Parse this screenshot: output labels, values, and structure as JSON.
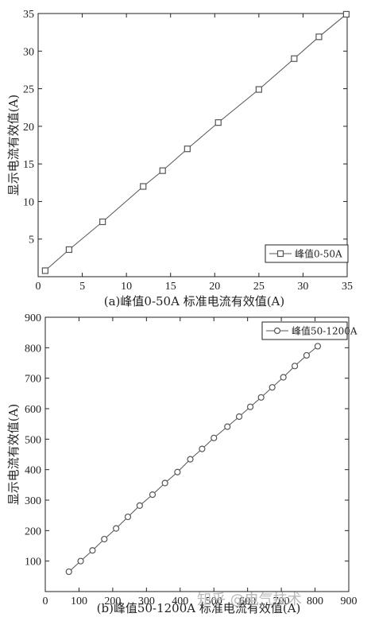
{
  "chart_data": [
    {
      "type": "line",
      "title": "",
      "xlabel": "(a)峰值0-50A  标准电流有效值(A)",
      "ylabel": "显示电流有效值(A)",
      "xlim": [
        0,
        35
      ],
      "ylim": [
        0,
        35
      ],
      "xticks": [
        "0",
        "5",
        "10",
        "15",
        "20",
        "25",
        "30",
        "35"
      ],
      "yticks": [
        "5",
        "10",
        "15",
        "20",
        "25",
        "30",
        "35"
      ],
      "legend_position": "bottom-right",
      "grid": false,
      "series": [
        {
          "name": "峰值0-50A",
          "marker": "square",
          "color": "#555555",
          "x": [
            0.8,
            3.5,
            7.3,
            11.9,
            14.1,
            16.9,
            20.4,
            25.0,
            29.0,
            31.8,
            34.9
          ],
          "y": [
            0.8,
            3.6,
            7.3,
            12.0,
            14.1,
            17.0,
            20.5,
            24.9,
            29.0,
            31.9,
            34.9
          ]
        }
      ]
    },
    {
      "type": "line",
      "title": "",
      "xlabel": "(b)峰值50-1200A  标准电流有效值(A)",
      "ylabel": "显示电流有效值(A)",
      "xlim": [
        0,
        900
      ],
      "ylim": [
        0,
        900
      ],
      "xticks": [
        "0",
        "100",
        "200",
        "300",
        "400",
        "500",
        "600",
        "700",
        "800",
        "900"
      ],
      "yticks": [
        "100",
        "200",
        "300",
        "400",
        "500",
        "600",
        "700",
        "800",
        "900"
      ],
      "legend_position": "top-right",
      "grid": false,
      "series": [
        {
          "name": "峰值50-1200A",
          "marker": "circle",
          "color": "#555555",
          "x": [
            70,
            105,
            140,
            175,
            210,
            245,
            280,
            318,
            355,
            392,
            430,
            465,
            500,
            540,
            575,
            608,
            640,
            673,
            706,
            740,
            775,
            808
          ],
          "y": [
            65,
            100,
            135,
            172,
            207,
            245,
            282,
            318,
            356,
            392,
            434,
            468,
            504,
            541,
            574,
            606,
            637,
            670,
            703,
            740,
            775,
            805
          ]
        }
      ]
    }
  ],
  "watermark": "知乎 @电气技术"
}
